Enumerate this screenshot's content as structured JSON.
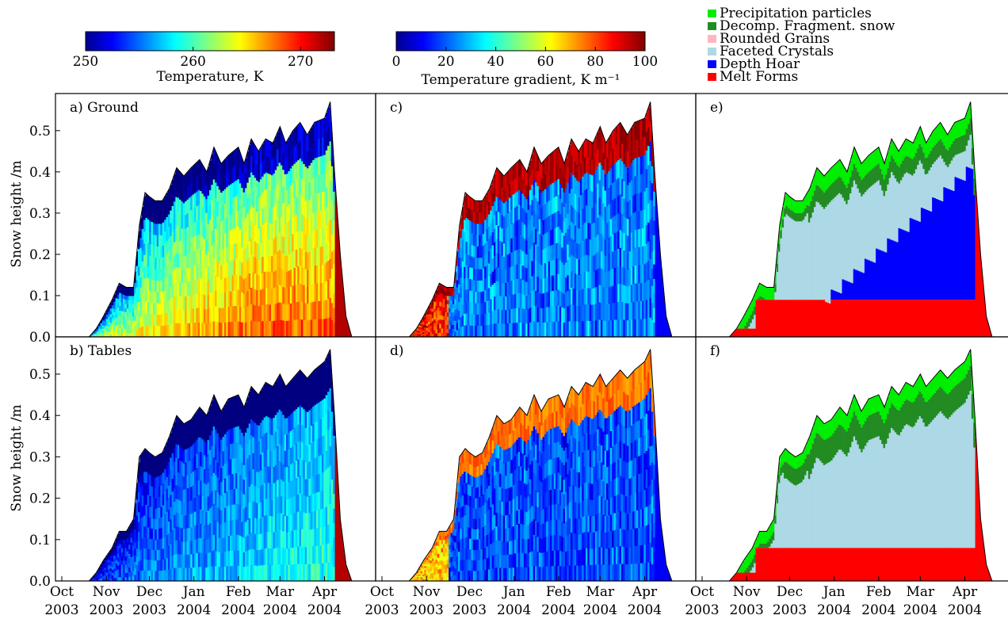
{
  "colorbars": [
    {
      "label": "Temperature, K",
      "ticks": [
        "250",
        "260",
        "270"
      ],
      "min": 250,
      "max": 273.15,
      "tick_values": [
        250,
        260,
        270
      ]
    },
    {
      "label": "Temperature gradient, K m⁻¹",
      "ticks": [
        "0",
        "20",
        "40",
        "60",
        "80",
        "100"
      ],
      "min": 0,
      "max": 100,
      "tick_values": [
        0,
        20,
        40,
        60,
        80,
        100
      ]
    }
  ],
  "legend": {
    "placement": "top-right",
    "items": [
      {
        "label": "Precipitation particles",
        "color": "#00ee00"
      },
      {
        "label": "Decomp. Fragment. snow",
        "color": "#228b22"
      },
      {
        "label": "Rounded Grains",
        "color": "#ffb6c1"
      },
      {
        "label": "Faceted Crystals",
        "color": "#add8e6"
      },
      {
        "label": "Depth Hoar",
        "color": "#0000ff"
      },
      {
        "label": "Melt Forms",
        "color": "#ff0000"
      }
    ]
  },
  "axes": {
    "ylabel": "Snow height /m",
    "yticks": [
      "0.0",
      "0.1",
      "0.2",
      "0.3",
      "0.4",
      "0.5"
    ],
    "ylim": [
      0,
      0.59
    ],
    "xticks": [
      {
        "m": "Oct",
        "y": "2003"
      },
      {
        "m": "Nov",
        "y": "2003"
      },
      {
        "m": "Dec",
        "y": "2003"
      },
      {
        "m": "Jan",
        "y": "2004"
      },
      {
        "m": "Feb",
        "y": "2004"
      },
      {
        "m": "Mar",
        "y": "2004"
      },
      {
        "m": "Apr",
        "y": "2004"
      }
    ]
  },
  "panels": [
    {
      "label": "a) Ground"
    },
    {
      "label": "c)"
    },
    {
      "label": "e)"
    },
    {
      "label": "b) Tables"
    },
    {
      "label": "d)"
    },
    {
      "label": "f)"
    }
  ],
  "chart_data": {
    "type": "area",
    "x": [
      "2003-10-20",
      "2003-10-25",
      "2003-10-30",
      "2003-11-05",
      "2003-11-10",
      "2003-11-15",
      "2003-11-20",
      "2003-11-24",
      "2003-11-28",
      "2003-12-01",
      "2003-12-05",
      "2003-12-10",
      "2003-12-15",
      "2003-12-20",
      "2003-12-25",
      "2003-12-30",
      "2004-01-05",
      "2004-01-10",
      "2004-01-15",
      "2004-01-20",
      "2004-01-25",
      "2004-02-01",
      "2004-02-05",
      "2004-02-10",
      "2004-02-15",
      "2004-02-20",
      "2004-02-25",
      "2004-03-01",
      "2004-03-05",
      "2004-03-10",
      "2004-03-15",
      "2004-03-20",
      "2004-03-25",
      "2004-04-01",
      "2004-04-05",
      "2004-04-08",
      "2004-04-12",
      "2004-04-16",
      "2004-04-20"
    ],
    "series": [
      {
        "name": "a) Ground",
        "values": [
          0.0,
          0.02,
          0.05,
          0.09,
          0.13,
          0.12,
          0.12,
          0.27,
          0.35,
          0.34,
          0.33,
          0.33,
          0.36,
          0.41,
          0.39,
          0.41,
          0.43,
          0.4,
          0.46,
          0.42,
          0.44,
          0.46,
          0.42,
          0.48,
          0.45,
          0.48,
          0.47,
          0.51,
          0.47,
          0.5,
          0.52,
          0.49,
          0.52,
          0.53,
          0.57,
          0.4,
          0.2,
          0.05,
          0.0
        ]
      },
      {
        "name": "b) Tables",
        "values": [
          0.0,
          0.02,
          0.05,
          0.08,
          0.12,
          0.12,
          0.15,
          0.3,
          0.32,
          0.31,
          0.3,
          0.31,
          0.35,
          0.4,
          0.38,
          0.39,
          0.42,
          0.4,
          0.45,
          0.41,
          0.44,
          0.45,
          0.42,
          0.47,
          0.45,
          0.48,
          0.47,
          0.5,
          0.47,
          0.49,
          0.51,
          0.49,
          0.51,
          0.53,
          0.56,
          0.4,
          0.15,
          0.04,
          0.0
        ]
      }
    ],
    "layers_e": {
      "melt_top": 0.09,
      "depth_hoar_top_start": 0.1,
      "depth_hoar_top_end": 0.43
    },
    "layers_f": {
      "melt_top": 0.08,
      "faceted_top_end": 0.47
    },
    "xlim": [
      "2003-10-01",
      "2004-04-30"
    ]
  }
}
